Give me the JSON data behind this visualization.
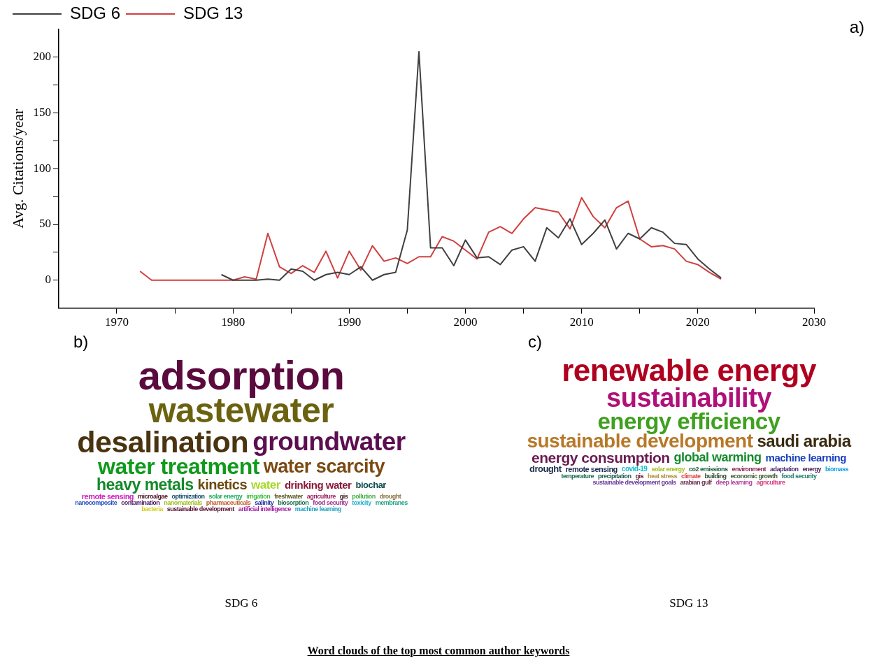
{
  "chart_data": [
    {
      "type": "line",
      "ylabel": "Avg. Citations/year",
      "xlim": [
        1965,
        2030
      ],
      "ylim": [
        -25,
        225
      ],
      "xticks": [
        1970,
        {
          "value": 1975,
          "label": null
        },
        1980,
        {
          "value": 1985,
          "label": null
        },
        1990,
        {
          "value": 1995,
          "label": null
        },
        2000,
        {
          "value": 2005,
          "label": null
        },
        2010,
        {
          "value": 2015,
          "label": null
        },
        2020,
        {
          "value": 2025,
          "label": null
        },
        2030
      ],
      "yticks": [
        0,
        {
          "value": 25,
          "label": null
        },
        50,
        {
          "value": 75,
          "label": null
        },
        100,
        {
          "value": 125,
          "label": null
        },
        150,
        {
          "value": 175,
          "label": null
        },
        200
      ],
      "grid": false,
      "legend": "top left",
      "marker": "none",
      "line_style": "solid",
      "annotations": [
        "a)"
      ],
      "series": [
        {
          "name": "SDG 6",
          "color": "#404040",
          "x": [
            1979,
            1980,
            1981,
            1982,
            1983,
            1984,
            1985,
            1986,
            1987,
            1988,
            1989,
            1990,
            1991,
            1992,
            1993,
            1994,
            1995,
            1996,
            1997,
            1998,
            1999,
            2000,
            2001,
            2002,
            2003,
            2004,
            2005,
            2006,
            2007,
            2008,
            2009,
            2010,
            2011,
            2012,
            2013,
            2014,
            2015,
            2016,
            2017,
            2018,
            2019,
            2020,
            2021,
            2022
          ],
          "values": [
            5,
            0,
            0,
            0,
            1,
            0,
            10,
            8,
            0,
            5,
            7,
            5,
            12,
            0,
            5,
            7,
            45,
            205,
            29,
            29,
            13,
            36,
            20,
            21,
            14,
            27,
            30,
            17,
            47,
            38,
            55,
            32,
            42,
            54,
            28,
            42,
            37,
            47,
            43,
            33,
            32,
            19,
            10,
            2
          ]
        },
        {
          "name": "SDG 13",
          "color": "#d04040",
          "x": [
            1972,
            1973,
            1974,
            1975,
            1976,
            1977,
            1978,
            1979,
            1980,
            1981,
            1982,
            1983,
            1984,
            1985,
            1986,
            1987,
            1988,
            1989,
            1990,
            1991,
            1992,
            1993,
            1994,
            1995,
            1996,
            1997,
            1998,
            1999,
            2000,
            2001,
            2002,
            2003,
            2004,
            2005,
            2006,
            2007,
            2008,
            2009,
            2010,
            2011,
            2012,
            2013,
            2014,
            2015,
            2016,
            2017,
            2018,
            2019,
            2020,
            2021,
            2022
          ],
          "values": [
            8,
            0,
            0,
            0,
            0,
            0,
            0,
            0,
            0,
            3,
            1,
            42,
            12,
            6,
            13,
            7,
            26,
            2,
            26,
            9,
            31,
            17,
            20,
            15,
            21,
            21,
            39,
            35,
            27,
            19,
            43,
            48,
            42,
            55,
            65,
            63,
            61,
            46,
            74,
            57,
            47,
            65,
            71,
            37,
            30,
            31,
            28,
            17,
            14,
            7,
            1
          ]
        }
      ]
    },
    {
      "type": "other",
      "title": "b)",
      "xlabel": "SDG 6",
      "annotations": [
        "adsorption",
        "wastewater",
        "desalination",
        "groundwater",
        "water treatment",
        "water scarcity",
        "heavy metals",
        "kinetics",
        "water",
        "drinking water",
        "biochar",
        "remote sensing",
        "microalgae",
        "optimization",
        "solar energy",
        "irrigation",
        "freshwater",
        "agriculture",
        "gis",
        "pollution",
        "drought",
        "nanocomposite",
        "contamination",
        "nanomaterials",
        "pharmaceuticals",
        "salinity",
        "biosorption",
        "food security",
        "toxicity",
        "membranes",
        "bacteria",
        "sustainable development",
        "artificial intelligence",
        "machine learning"
      ],
      "colors": [
        "#5a0a3c",
        "#6b6210",
        "#4a3410",
        "#5c0e50",
        "#0f9a1c",
        "#7a4a12",
        "#138a2a",
        "#6a4a10",
        "#a8d82a",
        "#8a1a3a",
        "#0e4a50",
        "#d020c0",
        "#4a1020",
        "#104a6a",
        "#18b060",
        "#40c040",
        "#5a5a20",
        "#a02060",
        "#3a2020",
        "#40b040",
        "#907040",
        "#2050c0",
        "#4a1a60",
        "#a0c020",
        "#c06030",
        "#2030a0",
        "#207050",
        "#a03090",
        "#20b0d0",
        "#20a080",
        "#d0d020",
        "#5a1030",
        "#a020a0",
        "#20a0c0"
      ]
    },
    {
      "type": "other",
      "title": "c)",
      "xlabel": "SDG 13",
      "annotations": [
        "renewable energy",
        "sustainability",
        "energy efficiency",
        "sustainable development",
        "saudi arabia",
        "energy consumption",
        "global warming",
        "machine learning",
        "drought",
        "remote sensing",
        "covid-19",
        "solar energy",
        "co2 emissions",
        "environment",
        "adaptation",
        "energy",
        "biomass",
        "temperature",
        "precipitation",
        "gis",
        "heat stress",
        "climate",
        "building",
        "economic growth",
        "food security",
        "sustainable development goals",
        "arabian gulf",
        "deep learning",
        "agriculture"
      ],
      "colors": [
        "#b00020",
        "#b0107a",
        "#40a020",
        "#b87828",
        "#3a2a10",
        "#6a1a50",
        "#138a2a",
        "#1a40c0",
        "#1a2a4a",
        "#1a2a50",
        "#10c0d0",
        "#a0c020",
        "#1a5a3a",
        "#8a2050",
        "#4a2a70",
        "#4a2060",
        "#10a0e0",
        "#1a6a50",
        "#1a5a4a",
        "#5a1a30",
        "#b09040",
        "#e04040",
        "#2a4a2a",
        "#3a5a2a",
        "#1a7a6a",
        "#6a3a9a",
        "#6a2a4a",
        "#b040a0",
        "#d04080"
      ]
    },
    {
      "type": "other",
      "title": "Word clouds of the top most common author keywords"
    }
  ]
}
